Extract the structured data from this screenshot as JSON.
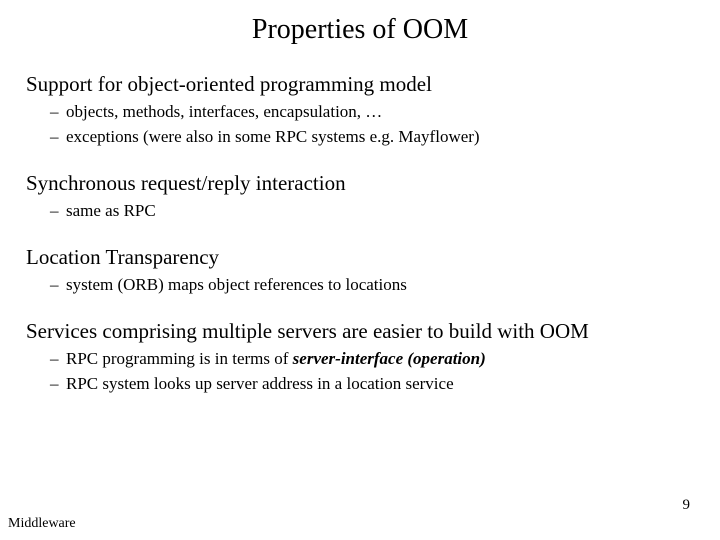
{
  "title": "Properties of OOM",
  "sections": [
    {
      "heading": "Support for object-oriented programming model",
      "bullets": [
        "objects, methods, interfaces, encapsulation, …",
        "exceptions (were also in some RPC systems e.g. Mayflower)"
      ]
    },
    {
      "heading": "Synchronous request/reply interaction",
      "bullets": [
        "same as RPC"
      ]
    },
    {
      "heading": "Location Transparency",
      "bullets": [
        "system (ORB) maps object references to locations"
      ]
    },
    {
      "heading": "Services comprising multiple servers are easier to build with OOM",
      "bullets": [
        "RPC programming is in terms of ",
        "RPC system looks up server address in a location service"
      ],
      "bullet0_emph": "server-interface (operation)"
    }
  ],
  "footer": "Middleware",
  "page": "9",
  "colors": {
    "background": "#ffffff",
    "text": "#000000"
  },
  "fonts": {
    "title_size_pt": 28,
    "topic_size_pt": 21,
    "bullet_size_pt": 17,
    "family": "Times New Roman"
  }
}
